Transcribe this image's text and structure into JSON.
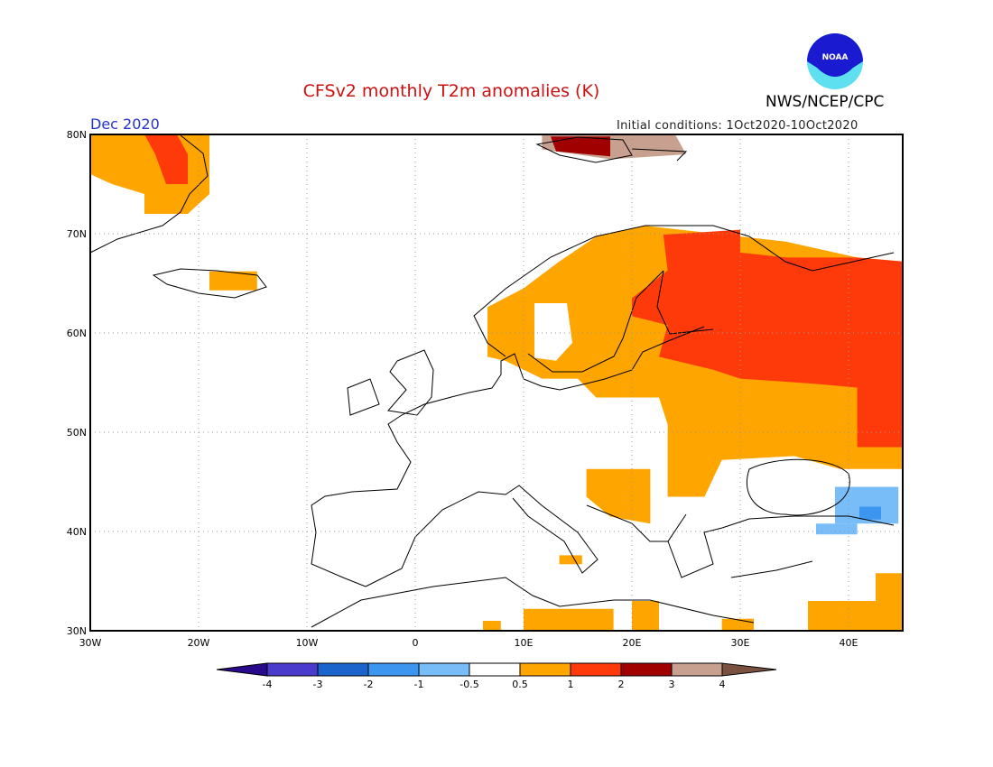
{
  "header": {
    "title": "CFSv2 monthly T2m anomalies (K)",
    "organization": "NWS/NCEP/CPC",
    "logo_text": "NOAA",
    "month": "Dec 2020",
    "initial_conditions": "Initial conditions: 1Oct2020-10Oct2020"
  },
  "chart_data": {
    "type": "map",
    "title": "CFSv2 monthly T2m anomalies (K)",
    "lon_range": [
      -30,
      45
    ],
    "lat_range": [
      30,
      80
    ],
    "grid": true,
    "x_tick_labels": [
      "30W",
      "20W",
      "10W",
      "0",
      "10E",
      "20E",
      "30E",
      "40E"
    ],
    "y_tick_labels": [
      "80N",
      "70N",
      "60N",
      "50N",
      "40N",
      "30N"
    ],
    "colorbar": {
      "labels": [
        "-4",
        "-3",
        "-2",
        "-1",
        "-0.5",
        "0.5",
        "1",
        "2",
        "3",
        "4"
      ],
      "colors": [
        "#2a0a8c",
        "#4b3bcc",
        "#1a64cc",
        "#3c96f0",
        "#78bcf8",
        "#ffffff",
        "#ffa500",
        "#ff3a0a",
        "#a00000",
        "#c8a090",
        "#7a5040"
      ]
    },
    "anomaly_regions": [
      {
        "level": "0.5 to 1",
        "color": "#ffa500",
        "polygon": [
          [
            6.67,
            57.6
          ],
          [
            6.67,
            62.6
          ],
          [
            10,
            64.5
          ],
          [
            13.3,
            67.2
          ],
          [
            16.7,
            69.7
          ],
          [
            21.25,
            70.8
          ],
          [
            34.2,
            69.2
          ],
          [
            40.8,
            67.6
          ],
          [
            45,
            67.2
          ],
          [
            45,
            46.3
          ],
          [
            39.2,
            46.3
          ],
          [
            35,
            47.6
          ],
          [
            28.3,
            47.2
          ],
          [
            26.7,
            43.5
          ],
          [
            23.3,
            43.5
          ],
          [
            23.3,
            50.8
          ],
          [
            22.5,
            53.5
          ],
          [
            16.7,
            53.5
          ],
          [
            15,
            55.4
          ],
          [
            11.7,
            55.4
          ],
          [
            8.3,
            57.2
          ]
        ]
      },
      {
        "level": "-0.5 to 0.5",
        "color": "#ffffff",
        "polygon": [
          [
            11,
            63
          ],
          [
            14,
            63
          ],
          [
            14.5,
            59
          ],
          [
            13,
            57.2
          ],
          [
            11,
            57.5
          ]
        ]
      },
      {
        "level": "1 to 2",
        "color": "#ff3a0a",
        "polygon": [
          [
            22.9,
            69.9
          ],
          [
            30,
            70.4
          ],
          [
            30,
            68.1
          ],
          [
            34.2,
            67.6
          ],
          [
            40.8,
            67.6
          ],
          [
            45,
            67.2
          ],
          [
            45,
            48.5
          ],
          [
            40.8,
            48.5
          ],
          [
            40.8,
            54.5
          ],
          [
            36.7,
            54.9
          ],
          [
            30,
            55.4
          ],
          [
            27.5,
            56.3
          ],
          [
            22.5,
            57.6
          ],
          [
            23.3,
            60.8
          ],
          [
            20,
            61.7
          ],
          [
            20,
            63.5
          ],
          [
            23.3,
            66.3
          ]
        ]
      },
      {
        "level": "0.5 to 1",
        "color": "#ffa500",
        "polygon": [
          [
            -30,
            80
          ],
          [
            -19,
            80
          ],
          [
            -19,
            74
          ],
          [
            -21,
            72
          ],
          [
            -25,
            72
          ],
          [
            -25,
            74
          ],
          [
            -28,
            75
          ],
          [
            -30,
            76
          ]
        ]
      },
      {
        "level": "1 to 2",
        "color": "#ff3a0a",
        "polygon": [
          [
            -25,
            80
          ],
          [
            -22,
            80
          ],
          [
            -21,
            78
          ],
          [
            -21,
            75
          ],
          [
            -23,
            75
          ],
          [
            -24,
            78
          ]
        ]
      },
      {
        "level": "0.5 to 1",
        "color": "#ffa500",
        "polygon": [
          [
            -19,
            66.2
          ],
          [
            -14.6,
            66.2
          ],
          [
            -14.6,
            64.3
          ],
          [
            -19,
            64.3
          ]
        ]
      },
      {
        "level": "3 to 4",
        "color": "#c8a090",
        "polygon": [
          [
            11.7,
            80
          ],
          [
            24,
            80
          ],
          [
            25,
            78
          ],
          [
            18,
            77.5
          ],
          [
            11.7,
            78.5
          ]
        ]
      },
      {
        "level": "2 to 3",
        "color": "#a00000",
        "polygon": [
          [
            12.5,
            79.8
          ],
          [
            18,
            79.8
          ],
          [
            18,
            77.8
          ],
          [
            13,
            78.3
          ]
        ]
      },
      {
        "level": "0.5 to 1",
        "color": "#ffa500",
        "polygon": [
          [
            15.8,
            46.3
          ],
          [
            21.7,
            46.3
          ],
          [
            21.7,
            40.8
          ],
          [
            18,
            41.5
          ],
          [
            15.8,
            43.5
          ]
        ]
      },
      {
        "level": "-1 to -0.5",
        "color": "#78bcf8",
        "polygon": [
          [
            38.75,
            44.5
          ],
          [
            44.6,
            44.5
          ],
          [
            44.6,
            40.8
          ],
          [
            38.75,
            40.8
          ]
        ]
      },
      {
        "level": "-1 to -0.5",
        "color": "#78bcf8",
        "polygon": [
          [
            37,
            40.8
          ],
          [
            40.8,
            40.8
          ],
          [
            40.8,
            39.7
          ],
          [
            37,
            39.7
          ]
        ]
      },
      {
        "level": "-2 to -1",
        "color": "#3c96f0",
        "polygon": [
          [
            41,
            42.5
          ],
          [
            43,
            42.5
          ],
          [
            43,
            41.2
          ],
          [
            41,
            41.2
          ]
        ]
      },
      {
        "level": "0.5 to 1",
        "color": "#ffa500",
        "polygon": [
          [
            42.5,
            35.8
          ],
          [
            45,
            35.8
          ],
          [
            45,
            30
          ],
          [
            42.5,
            30
          ]
        ]
      },
      {
        "level": "0.5 to 1",
        "color": "#ffa500",
        "polygon": [
          [
            36.25,
            33
          ],
          [
            42.5,
            33
          ],
          [
            42.5,
            30
          ],
          [
            36.25,
            30
          ]
        ]
      },
      {
        "level": "0.5 to 1",
        "color": "#ffa500",
        "polygon": [
          [
            6.25,
            31
          ],
          [
            7.9,
            31
          ],
          [
            7.9,
            30
          ],
          [
            6.25,
            30
          ]
        ]
      },
      {
        "level": "0.5 to 1",
        "color": "#ffa500",
        "polygon": [
          [
            10,
            32.2
          ],
          [
            18.3,
            32.2
          ],
          [
            18.3,
            30
          ],
          [
            10,
            30
          ]
        ]
      },
      {
        "level": "0.5 to 1",
        "color": "#ffa500",
        "polygon": [
          [
            20,
            33
          ],
          [
            22.5,
            33
          ],
          [
            22.5,
            30
          ],
          [
            20,
            30
          ]
        ]
      },
      {
        "level": "0.5 to 1",
        "color": "#ffa500",
        "polygon": [
          [
            28.3,
            31.2
          ],
          [
            31.25,
            31.2
          ],
          [
            31.25,
            30
          ],
          [
            28.3,
            30
          ]
        ]
      },
      {
        "level": "0.5 to 1",
        "color": "#ffa500",
        "polygon": [
          [
            13.3,
            37.6
          ],
          [
            15.4,
            37.6
          ],
          [
            15.4,
            36.7
          ],
          [
            13.3,
            36.7
          ]
        ]
      }
    ]
  }
}
